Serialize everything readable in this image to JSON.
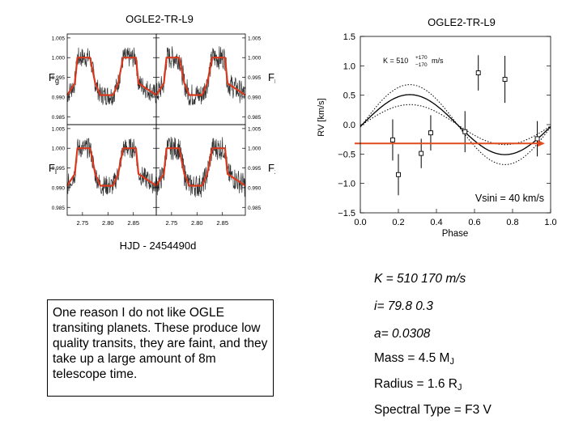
{
  "chart_data": [
    {
      "type": "line",
      "title": "OGLE2-TR-L9",
      "xlabel": "HJD - 2454490d",
      "panels": [
        {
          "name": "Fg",
          "side": "left"
        },
        {
          "name": "Fr",
          "side": "right"
        },
        {
          "name": "Fi",
          "side": "left"
        },
        {
          "name": "Fz",
          "side": "right"
        }
      ],
      "x_ticks": [
        "2.75",
        "2.80",
        "2.85"
      ],
      "y_ticks": [
        "1.005",
        "1.000",
        "0.995",
        "0.990",
        "0.985"
      ],
      "xlim": [
        2.72,
        2.895
      ],
      "ylim": [
        0.983,
        1.006
      ],
      "model": {
        "color": "#d93a1e",
        "x": [
          2.72,
          2.735,
          2.74,
          2.765,
          2.775,
          2.785,
          2.81,
          2.82,
          2.83,
          2.855,
          2.86,
          2.895
        ],
        "y": [
          0.9905,
          0.9935,
          1.0,
          1.0,
          0.9935,
          0.9905,
          0.9905,
          0.9935,
          1.0,
          1.0,
          0.9935,
          0.9905
        ]
      }
    },
    {
      "type": "scatter",
      "title": "OGLE2-TR-L9",
      "annotation": "K = 510 +170 -170 m/s",
      "xlabel": "Phase",
      "ylabel": "RV [km/s]",
      "xlim": [
        0.0,
        1.0
      ],
      "ylim": [
        -1.5,
        1.5
      ],
      "x_ticks": [
        "0.0",
        "0.2",
        "0.4",
        "0.6",
        "0.8",
        "1.0"
      ],
      "y_ticks": [
        "1.5",
        "1.0",
        "0.5",
        "0.0",
        "−0.5",
        "−1.0",
        "−1.5"
      ],
      "points": [
        {
          "x": 0.17,
          "y": -0.26,
          "err": 0.35
        },
        {
          "x": 0.2,
          "y": -0.85,
          "err": 0.35
        },
        {
          "x": 0.32,
          "y": -0.49,
          "err": 0.25
        },
        {
          "x": 0.37,
          "y": -0.14,
          "err": 0.3
        },
        {
          "x": 0.55,
          "y": -0.12,
          "err": 0.35
        },
        {
          "x": 0.62,
          "y": 0.88,
          "err": 0.3
        },
        {
          "x": 0.76,
          "y": 0.77,
          "err": 0.4
        },
        {
          "x": 0.93,
          "y": -0.24,
          "err": 0.3
        }
      ],
      "fit": {
        "K": 0.51,
        "v0": 0.0,
        "phase_offset": 0.5,
        "dK": 0.17
      },
      "arrow": {
        "y": -0.32,
        "x_start": -0.03,
        "x_end": 0.97,
        "color": "#e04a1f"
      },
      "arrow_label": "Vsini = 40 km/s"
    }
  ],
  "note": "One reason I do not like OGLE transiting planets. These produce low quality transits, they are faint, and they take up a large amount of 8m telescope time.",
  "params": {
    "k_line": "K = 510  170 m/s",
    "i_line": "i= 79.8   0.3",
    "a_line": "a= 0.0308",
    "mass_label": "Mass = 4.5  M",
    "mass_sub": "J",
    "radius_label": "Radius = 1.6 R",
    "radius_sub": "J",
    "spectral": "Spectral Type = F3 V"
  }
}
